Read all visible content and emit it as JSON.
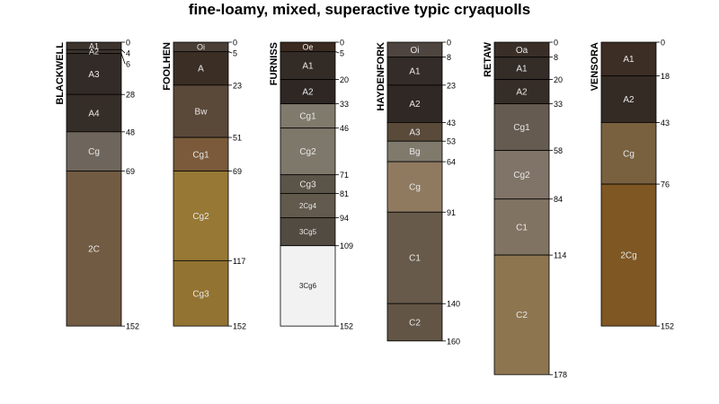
{
  "title": "fine-loamy, mixed, superactive typic cryaquolls",
  "profiles": [
    {
      "name": "BLACKWELL",
      "horizons": [
        {
          "name": "A1",
          "top": 0,
          "bottom": 4,
          "color": "#3e342e"
        },
        {
          "name": "A2",
          "top": 4,
          "bottom": 6,
          "color": "#3b322c"
        },
        {
          "name": "A3",
          "top": 6,
          "bottom": 28,
          "color": "#332b27"
        },
        {
          "name": "A4",
          "top": 28,
          "bottom": 48,
          "color": "#352d28"
        },
        {
          "name": "Cg",
          "top": 48,
          "bottom": 69,
          "color": "#6e665c"
        },
        {
          "name": "2C",
          "top": 69,
          "bottom": 152,
          "color": "#715b42"
        }
      ],
      "depth_labels": [
        "0",
        "4",
        "6",
        "28",
        "48",
        "69",
        "152"
      ]
    },
    {
      "name": "FOOLHEN",
      "horizons": [
        {
          "name": "Oi",
          "top": 0,
          "bottom": 5,
          "color": "#4a3f37"
        },
        {
          "name": "A",
          "top": 5,
          "bottom": 23,
          "color": "#3a2e25"
        },
        {
          "name": "Bw",
          "top": 23,
          "bottom": 51,
          "color": "#5a4838"
        },
        {
          "name": "Cg1",
          "top": 51,
          "bottom": 69,
          "color": "#7a5a3a"
        },
        {
          "name": "Cg2",
          "top": 69,
          "bottom": 117,
          "color": "#977835"
        },
        {
          "name": "Cg3",
          "top": 117,
          "bottom": 152,
          "color": "#937331"
        }
      ],
      "depth_labels": [
        "0",
        "5",
        "23",
        "51",
        "69",
        "117",
        "152"
      ]
    },
    {
      "name": "FURNISS",
      "horizons": [
        {
          "name": "Oe",
          "top": 0,
          "bottom": 5,
          "color": "#3b2a1f"
        },
        {
          "name": "A1",
          "top": 5,
          "bottom": 20,
          "color": "#332b26"
        },
        {
          "name": "A2",
          "top": 20,
          "bottom": 33,
          "color": "#2e2724"
        },
        {
          "name": "Cg1",
          "top": 33,
          "bottom": 46,
          "color": "#807a6c"
        },
        {
          "name": "Cg2",
          "top": 46,
          "bottom": 71,
          "color": "#7e786b"
        },
        {
          "name": "Cg3",
          "top": 71,
          "bottom": 81,
          "color": "#5b5448"
        },
        {
          "name": "2Cg4",
          "top": 81,
          "bottom": 94,
          "color": "#615a4d"
        },
        {
          "name": "3Cg5",
          "top": 94,
          "bottom": 109,
          "color": "#524b41"
        },
        {
          "name": "3Cg6",
          "top": 109,
          "bottom": 152,
          "color": "#f2f2f2"
        }
      ],
      "depth_labels": [
        "0",
        "5",
        "20",
        "33",
        "46",
        "71",
        "81",
        "94",
        "109",
        "152"
      ]
    },
    {
      "name": "HAYDENFORK",
      "horizons": [
        {
          "name": "Oi",
          "top": 0,
          "bottom": 8,
          "color": "#4e4540"
        },
        {
          "name": "A1",
          "top": 8,
          "bottom": 23,
          "color": "#332c28"
        },
        {
          "name": "A2",
          "top": 23,
          "bottom": 43,
          "color": "#2f2824"
        },
        {
          "name": "A3",
          "top": 43,
          "bottom": 53,
          "color": "#5a4a3a"
        },
        {
          "name": "Bg",
          "top": 53,
          "bottom": 64,
          "color": "#7f7a6c"
        },
        {
          "name": "Cg",
          "top": 64,
          "bottom": 91,
          "color": "#8f7a60"
        },
        {
          "name": "C1",
          "top": 91,
          "bottom": 140,
          "color": "#675a4a"
        },
        {
          "name": "C2",
          "top": 140,
          "bottom": 160,
          "color": "#625546"
        }
      ],
      "depth_labels": [
        "0",
        "8",
        "23",
        "43",
        "53",
        "64",
        "91",
        "140",
        "160"
      ]
    },
    {
      "name": "RETAW",
      "horizons": [
        {
          "name": "Oa",
          "top": 0,
          "bottom": 8,
          "color": "#3a2f28"
        },
        {
          "name": "A1",
          "top": 8,
          "bottom": 20,
          "color": "#332c27"
        },
        {
          "name": "A2",
          "top": 20,
          "bottom": 33,
          "color": "#352d27"
        },
        {
          "name": "Cg1",
          "top": 33,
          "bottom": 58,
          "color": "#655b50"
        },
        {
          "name": "Cg2",
          "top": 58,
          "bottom": 84,
          "color": "#807468"
        },
        {
          "name": "C1",
          "top": 84,
          "bottom": 114,
          "color": "#817362"
        },
        {
          "name": "C2",
          "top": 114,
          "bottom": 178,
          "color": "#8d7550"
        }
      ],
      "depth_labels": [
        "0",
        "8",
        "20",
        "33",
        "58",
        "84",
        "114",
        "178"
      ]
    },
    {
      "name": "VENSORA",
      "horizons": [
        {
          "name": "A1",
          "top": 0,
          "bottom": 18,
          "color": "#3c2e24"
        },
        {
          "name": "A2",
          "top": 18,
          "bottom": 43,
          "color": "#352b25"
        },
        {
          "name": "Cg",
          "top": 43,
          "bottom": 76,
          "color": "#79603f"
        },
        {
          "name": "2Cg",
          "top": 76,
          "bottom": 152,
          "color": "#7e5723"
        }
      ],
      "depth_labels": [
        "0",
        "18",
        "43",
        "76",
        "152"
      ]
    }
  ]
}
